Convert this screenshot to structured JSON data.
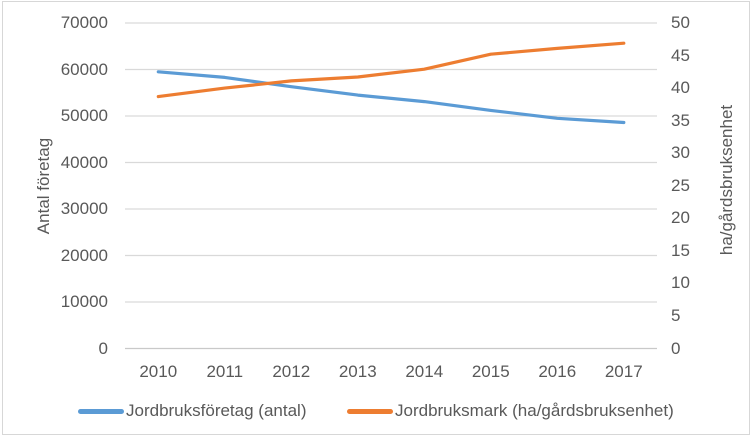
{
  "chart_data": {
    "type": "line",
    "title": "",
    "categories": [
      "2010",
      "2011",
      "2012",
      "2013",
      "2014",
      "2015",
      "2016",
      "2017"
    ],
    "series": [
      {
        "name": "Jordbruksföretag (antal)",
        "axis": "left",
        "color": "#5B9BD5",
        "values": [
          59500,
          58300,
          56300,
          54500,
          53100,
          51200,
          49500,
          48600
        ]
      },
      {
        "name": "Jordbruksmark (ha/gårdsbruksenhet)",
        "axis": "right",
        "color": "#ED7D31",
        "values": [
          38.7,
          40.0,
          41.1,
          41.7,
          42.9,
          45.2,
          46.1,
          46.9
        ]
      }
    ],
    "ylabel_left": "Antal företag",
    "ylabel_right": "ha/gårdsbruksenhet",
    "xlabel": "",
    "axis_left": {
      "min": 0,
      "max": 70000,
      "step": 10000,
      "ticks": [
        0,
        10000,
        20000,
        30000,
        40000,
        50000,
        60000,
        70000
      ]
    },
    "axis_right": {
      "min": 0,
      "max": 50,
      "step": 5,
      "ticks": [
        0,
        5,
        10,
        15,
        20,
        25,
        30,
        35,
        40,
        45,
        50
      ]
    },
    "grid": true,
    "legend_position": "bottom"
  },
  "colors": {
    "text": "#595959",
    "gridline": "#d9d9d9",
    "axis_line": "#c9c9c9",
    "frame_border": "#d7d7d7",
    "background": "#ffffff"
  }
}
